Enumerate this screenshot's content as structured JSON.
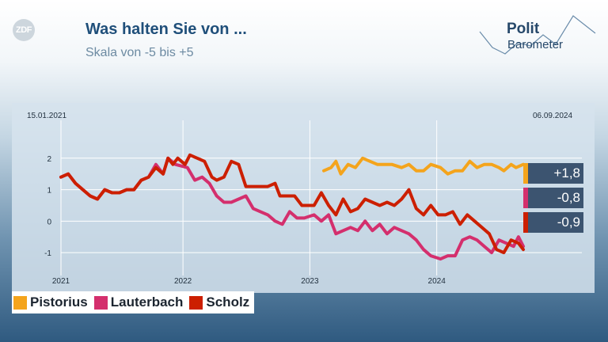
{
  "header": {
    "logo_text": "ZDF",
    "title": "Was halten Sie von ...",
    "subtitle": "Skala von -5 bis +5",
    "brand_line1": "Polit",
    "brand_line2": "Barometer"
  },
  "colors": {
    "Pistorius": "#f4a41c",
    "Lauterbach": "#d42f6d",
    "Scholz": "#cc1f00",
    "grid": "#ffffff",
    "value_box": "#3c5470"
  },
  "chart_data": {
    "type": "line",
    "title": "Was halten Sie von ...",
    "subtitle": "Skala von -5 bis +5",
    "start_date_label": "15.01.2021",
    "end_date_label": "06.09.2024",
    "x_range": [
      "2021-01-15",
      "2024-09-06"
    ],
    "ylim": [
      -1.6,
      3.0
    ],
    "y_ticks": [
      2,
      1,
      0,
      -1
    ],
    "x_ticks": [
      {
        "label": "2021",
        "date": "2021-01-01"
      },
      {
        "label": "2022",
        "date": "2022-01-01"
      },
      {
        "label": "2023",
        "date": "2023-01-01"
      },
      {
        "label": "2024",
        "date": "2024-01-01"
      }
    ],
    "grid": true,
    "legend_position": "bottom-left",
    "series": [
      {
        "name": "Pistorius",
        "latest_label": "+1,8",
        "points": [
          [
            "2023-02-10",
            1.6
          ],
          [
            "2023-03-03",
            1.7
          ],
          [
            "2023-03-17",
            1.9
          ],
          [
            "2023-03-31",
            1.5
          ],
          [
            "2023-04-21",
            1.8
          ],
          [
            "2023-05-12",
            1.7
          ],
          [
            "2023-06-02",
            2.0
          ],
          [
            "2023-06-23",
            1.9
          ],
          [
            "2023-07-14",
            1.8
          ],
          [
            "2023-08-25",
            1.8
          ],
          [
            "2023-09-22",
            1.7
          ],
          [
            "2023-10-13",
            1.8
          ],
          [
            "2023-11-03",
            1.6
          ],
          [
            "2023-11-24",
            1.6
          ],
          [
            "2023-12-15",
            1.8
          ],
          [
            "2024-01-12",
            1.7
          ],
          [
            "2024-02-02",
            1.5
          ],
          [
            "2024-02-23",
            1.6
          ],
          [
            "2024-03-15",
            1.6
          ],
          [
            "2024-04-05",
            1.9
          ],
          [
            "2024-04-26",
            1.7
          ],
          [
            "2024-05-17",
            1.8
          ],
          [
            "2024-06-07",
            1.8
          ],
          [
            "2024-06-28",
            1.7
          ],
          [
            "2024-07-12",
            1.6
          ],
          [
            "2024-08-02",
            1.8
          ],
          [
            "2024-08-16",
            1.7
          ],
          [
            "2024-09-06",
            1.8
          ]
        ]
      },
      {
        "name": "Lauterbach",
        "latest_label": "-0,8",
        "points": [
          [
            "2021-01-15",
            1.4
          ],
          [
            "2021-02-05",
            1.5
          ],
          [
            "2021-02-26",
            1.2
          ],
          [
            "2021-03-19",
            1.0
          ],
          [
            "2021-04-09",
            0.8
          ],
          [
            "2021-04-30",
            0.7
          ],
          [
            "2021-05-21",
            1.0
          ],
          [
            "2021-06-11",
            0.9
          ],
          [
            "2021-07-02",
            0.9
          ],
          [
            "2021-07-23",
            1.0
          ],
          [
            "2021-08-13",
            1.0
          ],
          [
            "2021-09-03",
            1.3
          ],
          [
            "2021-09-24",
            1.4
          ],
          [
            "2021-10-15",
            1.8
          ],
          [
            "2021-11-05",
            1.5
          ],
          [
            "2021-11-19",
            2.0
          ],
          [
            "2021-12-10",
            1.8
          ],
          [
            "2022-01-14",
            1.7
          ],
          [
            "2022-02-04",
            1.3
          ],
          [
            "2022-02-25",
            1.4
          ],
          [
            "2022-03-18",
            1.2
          ],
          [
            "2022-04-08",
            0.8
          ],
          [
            "2022-04-29",
            0.6
          ],
          [
            "2022-05-20",
            0.6
          ],
          [
            "2022-06-10",
            0.7
          ],
          [
            "2022-07-01",
            0.8
          ],
          [
            "2022-07-22",
            0.4
          ],
          [
            "2022-08-12",
            0.3
          ],
          [
            "2022-09-02",
            0.2
          ],
          [
            "2022-09-23",
            0.0
          ],
          [
            "2022-10-14",
            -0.1
          ],
          [
            "2022-11-04",
            0.3
          ],
          [
            "2022-11-25",
            0.1
          ],
          [
            "2022-12-16",
            0.1
          ],
          [
            "2023-01-13",
            0.2
          ],
          [
            "2023-02-03",
            0.0
          ],
          [
            "2023-02-24",
            0.2
          ],
          [
            "2023-03-17",
            -0.4
          ],
          [
            "2023-04-07",
            -0.3
          ],
          [
            "2023-04-28",
            -0.2
          ],
          [
            "2023-05-19",
            -0.3
          ],
          [
            "2023-06-09",
            0.0
          ],
          [
            "2023-06-30",
            -0.3
          ],
          [
            "2023-07-21",
            -0.1
          ],
          [
            "2023-08-11",
            -0.4
          ],
          [
            "2023-09-01",
            -0.2
          ],
          [
            "2023-09-22",
            -0.3
          ],
          [
            "2023-10-13",
            -0.4
          ],
          [
            "2023-11-03",
            -0.6
          ],
          [
            "2023-11-24",
            -0.9
          ],
          [
            "2023-12-15",
            -1.1
          ],
          [
            "2024-01-12",
            -1.2
          ],
          [
            "2024-02-02",
            -1.1
          ],
          [
            "2024-02-23",
            -1.1
          ],
          [
            "2024-03-15",
            -0.6
          ],
          [
            "2024-04-05",
            -0.5
          ],
          [
            "2024-04-26",
            -0.6
          ],
          [
            "2024-05-17",
            -0.8
          ],
          [
            "2024-06-07",
            -1.0
          ],
          [
            "2024-06-28",
            -0.6
          ],
          [
            "2024-07-19",
            -0.7
          ],
          [
            "2024-08-09",
            -0.8
          ],
          [
            "2024-08-23",
            -0.5
          ],
          [
            "2024-09-06",
            -0.8
          ]
        ]
      },
      {
        "name": "Scholz",
        "latest_label": "-0,9",
        "points": [
          [
            "2021-01-15",
            1.4
          ],
          [
            "2021-02-05",
            1.5
          ],
          [
            "2021-02-26",
            1.2
          ],
          [
            "2021-03-19",
            1.0
          ],
          [
            "2021-04-09",
            0.8
          ],
          [
            "2021-04-30",
            0.7
          ],
          [
            "2021-05-21",
            1.0
          ],
          [
            "2021-06-11",
            0.9
          ],
          [
            "2021-07-02",
            0.9
          ],
          [
            "2021-07-23",
            1.0
          ],
          [
            "2021-08-13",
            1.0
          ],
          [
            "2021-09-03",
            1.3
          ],
          [
            "2021-09-24",
            1.4
          ],
          [
            "2021-10-15",
            1.7
          ],
          [
            "2021-11-05",
            1.5
          ],
          [
            "2021-11-19",
            2.0
          ],
          [
            "2021-12-03",
            1.8
          ],
          [
            "2021-12-17",
            2.0
          ],
          [
            "2022-01-07",
            1.8
          ],
          [
            "2022-01-21",
            2.1
          ],
          [
            "2022-02-11",
            2.0
          ],
          [
            "2022-03-04",
            1.9
          ],
          [
            "2022-03-25",
            1.4
          ],
          [
            "2022-04-08",
            1.3
          ],
          [
            "2022-04-29",
            1.4
          ],
          [
            "2022-05-20",
            1.9
          ],
          [
            "2022-06-10",
            1.8
          ],
          [
            "2022-07-01",
            1.1
          ],
          [
            "2022-07-22",
            1.1
          ],
          [
            "2022-08-12",
            1.1
          ],
          [
            "2022-09-02",
            1.1
          ],
          [
            "2022-09-23",
            1.2
          ],
          [
            "2022-10-07",
            0.8
          ],
          [
            "2022-10-28",
            0.8
          ],
          [
            "2022-11-18",
            0.8
          ],
          [
            "2022-12-09",
            0.5
          ],
          [
            "2023-01-13",
            0.5
          ],
          [
            "2023-02-03",
            0.9
          ],
          [
            "2023-02-24",
            0.5
          ],
          [
            "2023-03-17",
            0.2
          ],
          [
            "2023-04-07",
            0.7
          ],
          [
            "2023-04-28",
            0.3
          ],
          [
            "2023-05-19",
            0.4
          ],
          [
            "2023-06-09",
            0.7
          ],
          [
            "2023-06-30",
            0.6
          ],
          [
            "2023-07-21",
            0.5
          ],
          [
            "2023-08-11",
            0.6
          ],
          [
            "2023-09-01",
            0.5
          ],
          [
            "2023-09-22",
            0.7
          ],
          [
            "2023-10-13",
            1.0
          ],
          [
            "2023-11-03",
            0.4
          ],
          [
            "2023-11-24",
            0.2
          ],
          [
            "2023-12-15",
            0.5
          ],
          [
            "2024-01-05",
            0.2
          ],
          [
            "2024-01-26",
            0.2
          ],
          [
            "2024-02-16",
            0.3
          ],
          [
            "2024-03-08",
            -0.1
          ],
          [
            "2024-03-29",
            0.2
          ],
          [
            "2024-04-19",
            0.0
          ],
          [
            "2024-05-10",
            -0.2
          ],
          [
            "2024-05-31",
            -0.4
          ],
          [
            "2024-06-21",
            -0.9
          ],
          [
            "2024-07-12",
            -1.0
          ],
          [
            "2024-08-02",
            -0.6
          ],
          [
            "2024-08-23",
            -0.7
          ],
          [
            "2024-09-06",
            -0.9
          ]
        ]
      }
    ]
  }
}
